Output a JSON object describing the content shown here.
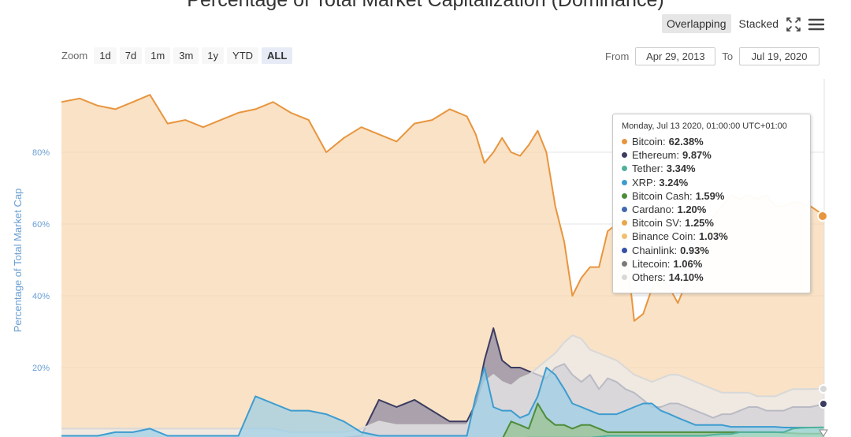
{
  "header": {
    "title": "Percentage of Total Market Capitalization (Dominance)",
    "views": [
      "Overlapping",
      "Stacked"
    ],
    "active_view": "Overlapping",
    "fullscreen_icon": "fullscreen-icon",
    "menu_icon": "hamburger-menu-icon"
  },
  "zoom": {
    "label": "Zoom",
    "buttons": [
      "1d",
      "7d",
      "1m",
      "3m",
      "1y",
      "YTD",
      "ALL"
    ],
    "active": "ALL"
  },
  "range": {
    "from_label": "From",
    "from_value": "Apr 29, 2013",
    "to_label": "To",
    "to_value": "Jul 19, 2020"
  },
  "tooltip": {
    "header": "Monday, Jul 13 2020, 01:00:00 UTC+01:00",
    "items": [
      {
        "name": "Bitcoin",
        "value": "62.38%",
        "color": "#e8953e"
      },
      {
        "name": "Ethereum",
        "value": "9.87%",
        "color": "#3c3c60"
      },
      {
        "name": "Tether",
        "value": "3.34%",
        "color": "#4fb09b"
      },
      {
        "name": "XRP",
        "value": "3.24%",
        "color": "#3d9ccf"
      },
      {
        "name": "Bitcoin Cash",
        "value": "1.59%",
        "color": "#4d8d3a"
      },
      {
        "name": "Cardano",
        "value": "1.20%",
        "color": "#3f69b0"
      },
      {
        "name": "Bitcoin SV",
        "value": "1.25%",
        "color": "#e6a84a"
      },
      {
        "name": "Binance Coin",
        "value": "1.03%",
        "color": "#f0c070"
      },
      {
        "name": "Chainlink",
        "value": "0.93%",
        "color": "#3450a8"
      },
      {
        "name": "Litecoin",
        "value": "1.06%",
        "color": "#7a7a7a"
      },
      {
        "name": "Others",
        "value": "14.10%",
        "color": "#d8d8d8"
      }
    ]
  },
  "chart_data": {
    "type": "area",
    "title": "Percentage of Total Market Capitalization (Dominance)",
    "ylabel": "Percentage of Total Market Cap",
    "yticks": [
      "20%",
      "40%",
      "60%",
      "80%"
    ],
    "ylim": [
      0,
      100
    ],
    "xlim": [
      "2013-04-29",
      "2020-07-19"
    ],
    "grid": true,
    "x": [
      "2013-04-29",
      "2013-07-01",
      "2013-09-01",
      "2013-11-01",
      "2014-01-01",
      "2014-03-01",
      "2014-05-01",
      "2014-07-01",
      "2014-09-01",
      "2014-11-01",
      "2015-01-01",
      "2015-03-01",
      "2015-05-01",
      "2015-07-01",
      "2015-09-01",
      "2015-11-01",
      "2016-01-01",
      "2016-03-01",
      "2016-05-01",
      "2016-07-01",
      "2016-09-01",
      "2016-11-01",
      "2017-01-01",
      "2017-03-01",
      "2017-04-01",
      "2017-05-01",
      "2017-06-01",
      "2017-07-01",
      "2017-08-01",
      "2017-09-01",
      "2017-10-01",
      "2017-11-01",
      "2017-12-01",
      "2018-01-01",
      "2018-02-01",
      "2018-03-01",
      "2018-04-01",
      "2018-05-01",
      "2018-06-01",
      "2018-07-01",
      "2018-08-01",
      "2018-09-01",
      "2018-10-01",
      "2018-11-01",
      "2018-12-01",
      "2019-01-01",
      "2019-02-01",
      "2019-03-01",
      "2019-04-01",
      "2019-05-01",
      "2019-06-01",
      "2019-07-01",
      "2019-08-01",
      "2019-09-01",
      "2019-10-01",
      "2019-11-01",
      "2019-12-01",
      "2020-01-01",
      "2020-02-01",
      "2020-03-01",
      "2020-04-01",
      "2020-05-01",
      "2020-06-01",
      "2020-07-19"
    ],
    "series": [
      {
        "name": "Bitcoin",
        "color": "#e8953e",
        "fill": "#f6d7b0",
        "values": [
          94,
          95,
          93,
          92,
          94,
          96,
          88,
          89,
          87,
          89,
          91,
          92,
          94,
          91,
          89,
          80,
          84,
          87,
          85,
          83,
          88,
          89,
          92,
          90,
          85,
          77,
          80,
          84,
          80,
          79,
          82,
          86,
          80,
          65,
          55,
          40,
          45,
          48,
          48,
          58,
          60,
          55,
          33,
          35,
          42,
          45,
          42,
          38,
          44,
          50,
          57,
          62,
          65,
          68,
          67,
          68,
          67,
          68,
          65,
          65,
          66,
          66,
          65,
          62.38
        ]
      },
      {
        "name": "Ethereum",
        "color": "#3c3c60",
        "fill": "#8a88a2",
        "values": [
          0,
          0,
          0,
          0,
          0,
          0,
          0,
          0,
          0,
          0,
          0,
          0,
          0,
          0,
          0,
          0,
          0.5,
          1,
          11,
          9,
          11,
          8,
          5,
          5,
          10,
          22,
          31,
          22,
          20,
          20,
          19,
          18,
          17,
          20,
          21,
          18,
          16,
          18,
          14,
          17,
          16,
          14,
          13,
          11,
          9,
          9,
          10,
          10,
          9,
          8,
          7,
          6,
          7,
          7,
          8,
          9,
          9,
          8,
          8,
          8,
          9,
          9,
          9,
          9.87
        ]
      },
      {
        "name": "Others",
        "color": "#d8d8d8",
        "fill": "#ebebeb",
        "values": [
          3,
          3,
          3,
          3,
          3,
          3,
          3,
          3,
          3,
          3,
          3,
          3,
          3,
          2,
          2,
          2,
          2,
          3,
          5,
          4,
          4,
          4,
          4,
          4,
          9,
          16,
          18,
          16,
          15,
          17,
          18,
          20,
          22,
          24,
          27,
          29,
          28,
          25,
          24,
          23,
          22,
          20,
          18,
          17,
          16,
          17,
          18,
          18,
          17,
          16,
          15,
          14,
          13,
          13,
          13,
          13,
          12,
          12,
          12,
          13,
          14,
          14,
          14,
          14.1
        ]
      },
      {
        "name": "XRP",
        "color": "#3d9ccf",
        "fill": "#9ccfe6",
        "values": [
          1,
          1,
          1,
          2,
          2,
          3,
          1,
          1,
          1,
          1,
          1,
          12,
          10,
          8,
          8,
          7,
          5,
          2,
          1,
          1,
          1,
          1,
          1,
          1,
          12,
          20,
          9,
          8,
          8,
          6,
          7,
          12,
          20,
          18,
          14,
          10,
          9,
          8,
          7,
          7,
          7,
          8,
          9,
          10,
          10,
          8,
          7,
          6,
          5,
          4,
          4,
          4,
          4,
          3.5,
          3.5,
          3.5,
          3.5,
          3.5,
          3.5,
          3.3,
          3.3,
          3.3,
          3.3,
          3.24
        ]
      },
      {
        "name": "Bitcoin Cash",
        "color": "#4d8d3a",
        "fill": "#9cc48e",
        "values": [
          0,
          0,
          0,
          0,
          0,
          0,
          0,
          0,
          0,
          0,
          0,
          0,
          0,
          0,
          0,
          0,
          0,
          0,
          0,
          0,
          0,
          0,
          0,
          0,
          0,
          0,
          0,
          0,
          5,
          4,
          3,
          10,
          6,
          4,
          4,
          3,
          4,
          4,
          3,
          2,
          2,
          2,
          2,
          2,
          2,
          2,
          2,
          2,
          2,
          2,
          2,
          2,
          2,
          2,
          2,
          2,
          2,
          2,
          2,
          1.8,
          1.7,
          1.6,
          1.6,
          1.59
        ]
      },
      {
        "name": "Tether",
        "color": "#4fb09b",
        "fill": "#a8dcd0",
        "values": [
          0,
          0,
          0,
          0,
          0,
          0,
          0,
          0,
          0,
          0,
          0,
          0,
          0,
          0,
          0,
          0,
          0,
          0,
          0,
          0,
          0,
          0,
          0,
          0,
          0.1,
          0.1,
          0.2,
          0.2,
          0.3,
          0.3,
          0.5,
          0.5,
          0.5,
          0.5,
          0.5,
          0.5,
          0.5,
          0.5,
          0.7,
          1,
          1,
          1,
          1,
          1,
          1,
          1,
          1,
          1,
          1,
          1,
          1,
          1.3,
          1.5,
          1.5,
          2,
          2,
          2,
          2,
          2,
          2,
          3,
          3.2,
          3.3,
          3.34
        ]
      }
    ]
  }
}
